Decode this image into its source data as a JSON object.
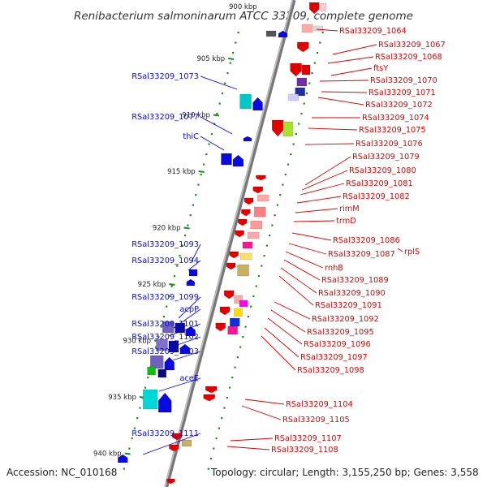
{
  "title": "Renibacterium salmoninarum ATCC 33209, complete genome",
  "top_cut_label": "900 kbp",
  "footer": {
    "accession": "Accession: NC_010168",
    "topology": "Topology: circular; Length: 3,155,250 bp; Genes: 3,558"
  },
  "colors": {
    "forward": "#0a0ae0",
    "reverse": "#e00000",
    "backbone": "#999999",
    "tick": "#1a8f1a"
  },
  "ruler": [
    {
      "kbp": 905,
      "label": "905 kbp"
    },
    {
      "kbp": 910,
      "label": "910 kbp"
    },
    {
      "kbp": 915,
      "label": "915 kbp"
    },
    {
      "kbp": 920,
      "label": "920 kbp"
    },
    {
      "kbp": 925,
      "label": "925 kbp"
    },
    {
      "kbp": 930,
      "label": "930 kbp"
    },
    {
      "kbp": 935,
      "label": "935 kbp"
    },
    {
      "kbp": 940,
      "label": "940 kbp"
    }
  ],
  "forward_labels": [
    "RSal33209_1073",
    "RSal33209_1077",
    "thiC",
    "RSal33209_1093",
    "RSal33209_1094",
    "RSal33209_1099",
    "acpP",
    "RSal33209_1101",
    "RSal33209_1102",
    "RSal33209_1103",
    "aceE",
    "RSal33209_1111"
  ],
  "reverse_labels": [
    "RSal33209_1064",
    "RSal33209_1067",
    "RSal33209_1068",
    "ftsY",
    "RSal33209_1070",
    "RSal33209_1071",
    "RSal33209_1072",
    "RSal33209_1074",
    "RSal33209_1075",
    "RSal33209_1076",
    "RSal33209_1079",
    "RSal33209_1080",
    "RSal33209_1081",
    "RSal33209_1082",
    "rimM",
    "trmD",
    "RSal33209_1086",
    "rplS",
    "RSal33209_1087",
    "rnhB",
    "RSal33209_1089",
    "RSal33209_1090",
    "RSal33209_1091",
    "RSal33209_1092",
    "RSal33209_1095",
    "RSal33209_1096",
    "RSal33209_1097",
    "RSal33209_1098",
    "RSal33209_1104",
    "RSal33209_1105",
    "RSal33209_1107",
    "RSal33209_1108"
  ]
}
